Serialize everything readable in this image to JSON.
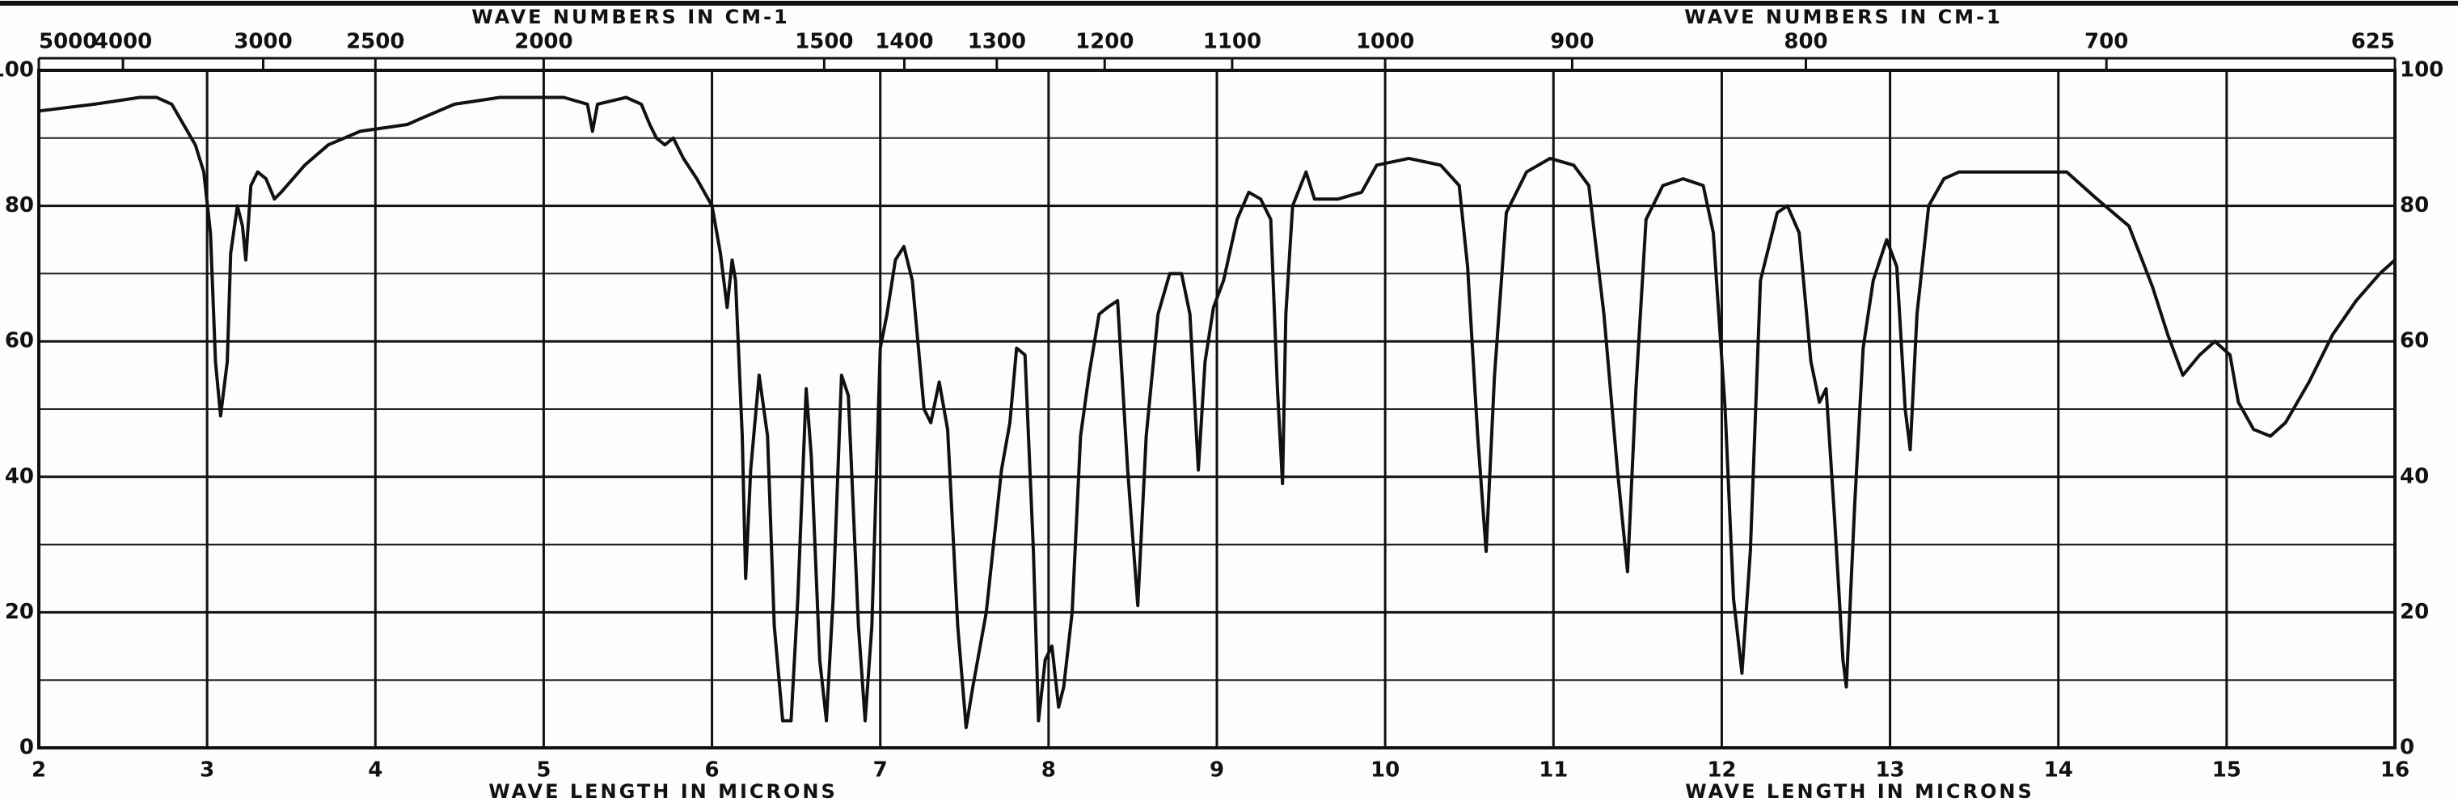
{
  "chart_data": {
    "type": "line",
    "x_label": "WAVE LENGTH IN MICRONS",
    "x2_label": "WAVE NUMBERS IN CM-1",
    "xlim": [
      2,
      16
    ],
    "xticks": [
      2,
      3,
      4,
      5,
      6,
      7,
      8,
      9,
      10,
      11,
      12,
      13,
      14,
      15,
      16
    ],
    "x2ticks": [
      5000,
      4000,
      3000,
      2500,
      2000,
      1500,
      1400,
      1300,
      1200,
      1100,
      1000,
      900,
      800,
      700,
      625
    ],
    "ylim": [
      0,
      100
    ],
    "yticks": [
      0,
      20,
      40,
      60,
      80,
      100
    ],
    "yminor": [
      10,
      30,
      50,
      70,
      90
    ],
    "grid": true,
    "color": "#111111",
    "x": [
      2.0,
      2.33,
      2.6,
      2.7,
      2.79,
      2.93,
      2.98,
      3.02,
      3.05,
      3.08,
      3.12,
      3.14,
      3.18,
      3.21,
      3.23,
      3.26,
      3.3,
      3.35,
      3.4,
      3.44,
      3.58,
      3.72,
      3.91,
      4.19,
      4.28,
      4.47,
      4.74,
      5.12,
      5.26,
      5.29,
      5.32,
      5.49,
      5.58,
      5.63,
      5.67,
      5.72,
      5.77,
      5.83,
      5.91,
      6.0,
      6.05,
      6.09,
      6.12,
      6.14,
      6.18,
      6.2,
      6.23,
      6.28,
      6.33,
      6.37,
      6.42,
      6.47,
      6.51,
      6.56,
      6.59,
      6.64,
      6.68,
      6.72,
      6.77,
      6.81,
      6.87,
      6.91,
      6.95,
      7.0,
      7.04,
      7.09,
      7.14,
      7.19,
      7.26,
      7.3,
      7.35,
      7.4,
      7.46,
      7.51,
      7.55,
      7.63,
      7.72,
      7.77,
      7.81,
      7.86,
      7.91,
      7.94,
      7.98,
      8.02,
      8.06,
      8.09,
      8.14,
      8.19,
      8.24,
      8.3,
      8.35,
      8.41,
      8.47,
      8.53,
      8.58,
      8.65,
      8.72,
      8.79,
      8.84,
      8.89,
      8.93,
      8.98,
      9.04,
      9.12,
      9.19,
      9.26,
      9.32,
      9.36,
      9.39,
      9.41,
      9.45,
      9.53,
      9.58,
      9.72,
      9.86,
      9.95,
      10.14,
      10.33,
      10.44,
      10.49,
      10.55,
      10.6,
      10.65,
      10.72,
      10.84,
      10.98,
      11.12,
      11.21,
      11.3,
      11.38,
      11.44,
      11.49,
      11.55,
      11.65,
      11.77,
      11.89,
      11.95,
      12.02,
      12.07,
      12.12,
      12.17,
      12.23,
      12.33,
      12.39,
      12.46,
      12.53,
      12.58,
      12.62,
      12.67,
      12.72,
      12.74,
      12.79,
      12.84,
      12.9,
      12.98,
      13.04,
      13.09,
      13.12,
      13.16,
      13.23,
      13.32,
      13.41,
      13.63,
      13.77,
      13.91,
      14.05,
      14.23,
      14.42,
      14.56,
      14.65,
      14.74,
      14.84,
      14.93,
      15.02,
      15.07,
      15.16,
      15.26,
      15.35,
      15.49,
      15.63,
      15.77,
      15.91,
      16.0
    ],
    "values": [
      94,
      95,
      96,
      96,
      95,
      89,
      85,
      76,
      57,
      49,
      57,
      73,
      80,
      77,
      72,
      83,
      85,
      84,
      81,
      82,
      86,
      89,
      91,
      92,
      93,
      95,
      96,
      96,
      95,
      91,
      95,
      96,
      95,
      92,
      90,
      89,
      90,
      87,
      84,
      80,
      73,
      65,
      72,
      69,
      46,
      25,
      41,
      55,
      46,
      18,
      4,
      4,
      22,
      53,
      43,
      13,
      4,
      22,
      55,
      52,
      18,
      4,
      18,
      59,
      64,
      72,
      74,
      69,
      50,
      48,
      54,
      47,
      18,
      3,
      9,
      20,
      41,
      48,
      59,
      58,
      29,
      4,
      13,
      15,
      6,
      9,
      20,
      46,
      55,
      64,
      65,
      66,
      41,
      21,
      46,
      64,
      70,
      70,
      64,
      41,
      57,
      65,
      69,
      78,
      82,
      81,
      78,
      53,
      39,
      64,
      80,
      85,
      81,
      81,
      82,
      86,
      87,
      86,
      83,
      71,
      46,
      29,
      55,
      79,
      85,
      87,
      86,
      83,
      64,
      41,
      26,
      53,
      78,
      83,
      84,
      83,
      76,
      50,
      22,
      11,
      29,
      69,
      79,
      80,
      76,
      57,
      51,
      53,
      34,
      13,
      9,
      36,
      59,
      69,
      75,
      71,
      50,
      44,
      64,
      80,
      84,
      85,
      85,
      85,
      85,
      85,
      81,
      77,
      68,
      61,
      55,
      58,
      60,
      58,
      51,
      47,
      46,
      48,
      54,
      61,
      66,
      70,
      72
    ]
  }
}
